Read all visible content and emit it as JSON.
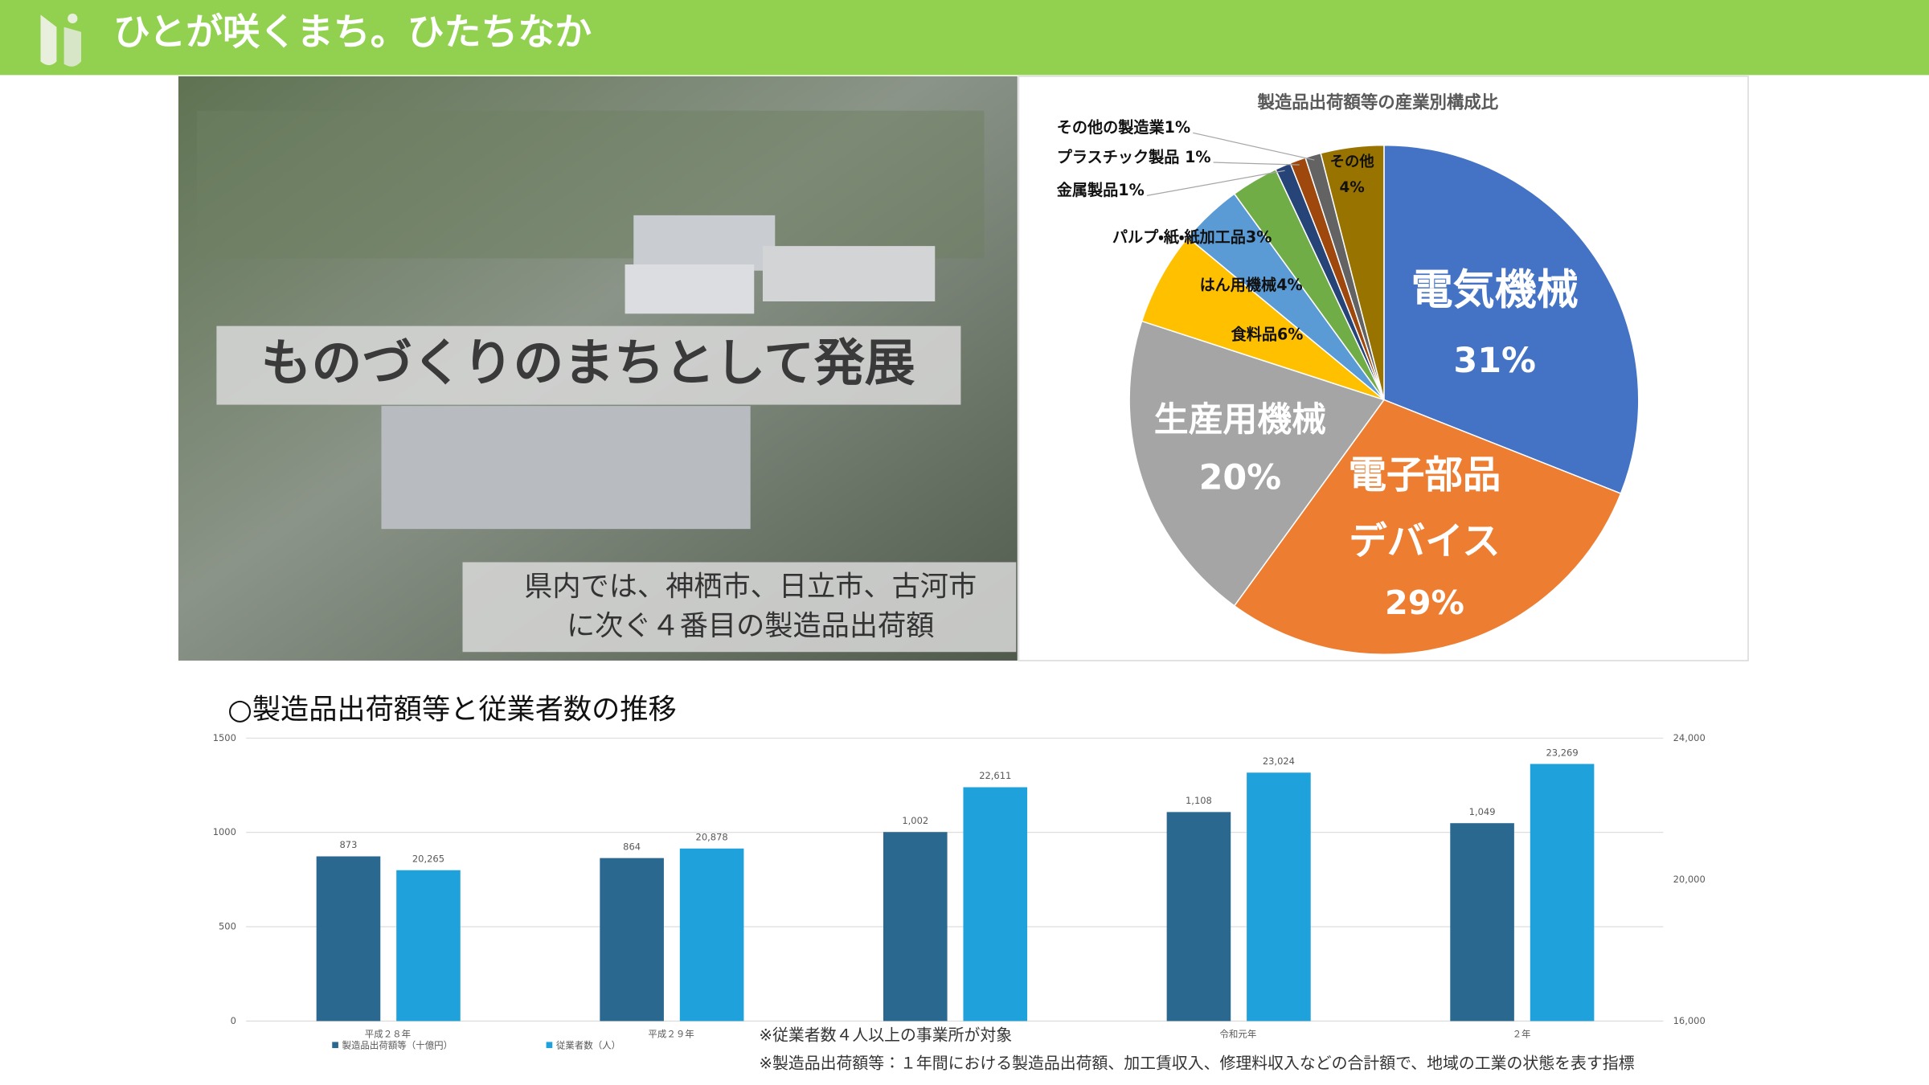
{
  "header": {
    "title": "ひとが咲くまち。ひたちなか"
  },
  "photo": {
    "caption": "ものづくりのまちとして発展",
    "note_lines": [
      "県内では、神栖市、日立市、古河市",
      "に次ぐ４番目の製造品出荷額"
    ]
  },
  "section_title": "○製造品出荷額等と従業者数の推移",
  "notes": [
    "※従業者数４人以上の事業所が対象",
    "※製造品出荷額等：１年間における製造品出荷額、加工賃収入、修理料収入などの合計額で、地域の工業の状態を表す指標"
  ],
  "chart_data": [
    {
      "type": "pie",
      "title": "製造品出荷額等の産業別構成比",
      "categories": [
        "電気機械",
        "電子部品デバイス",
        "生産用機械",
        "食料品",
        "はん用機械",
        "パルプ・紙・紙加工品",
        "金属製品",
        "プラスチック製品 ",
        "その他の製造業",
        "その他"
      ],
      "values": [
        31,
        29,
        20,
        6,
        4,
        3,
        1,
        1,
        1,
        4
      ],
      "value_labels": [
        "31%",
        "29%",
        "20%",
        "6%",
        "4%",
        "3%",
        "1%",
        "1%",
        "1%",
        "4%"
      ],
      "colors": [
        "#4472c4",
        "#ed7d31",
        "#a5a5a5",
        "#ffc000",
        "#5b9bd5",
        "#70ad47",
        "#264478",
        "#9e480e",
        "#636363",
        "#997300"
      ]
    },
    {
      "type": "bar",
      "categories": [
        "平成２８年",
        "平成２９年",
        null,
        "令和元年",
        "２年"
      ],
      "series": [
        {
          "name": "製造品出荷額等（十億円）",
          "color": "#2a6890",
          "values": [
            873,
            864,
            1002,
            1108,
            1049
          ],
          "value_labels": [
            "873",
            "864",
            "1,002",
            "1,108",
            "1,049"
          ]
        },
        {
          "name": "従業者数（人）",
          "color": "#1fa2dc",
          "axis": "y2",
          "values": [
            20265,
            20878,
            22611,
            23024,
            23269
          ],
          "value_labels": [
            "20,265",
            "20,878",
            "22,611",
            "23,024",
            "23,269"
          ]
        }
      ],
      "ylim": [
        0,
        1500
      ],
      "yticks": [
        0,
        500,
        1000,
        1500
      ],
      "y2lim": [
        16000,
        24000
      ],
      "y2ticks": [
        {
          "value": 16000,
          "label": "16,000"
        },
        {
          "value": 20000,
          "label": "20,000"
        },
        {
          "value": 24000,
          "label": "24,000"
        }
      ],
      "grid": true
    }
  ]
}
